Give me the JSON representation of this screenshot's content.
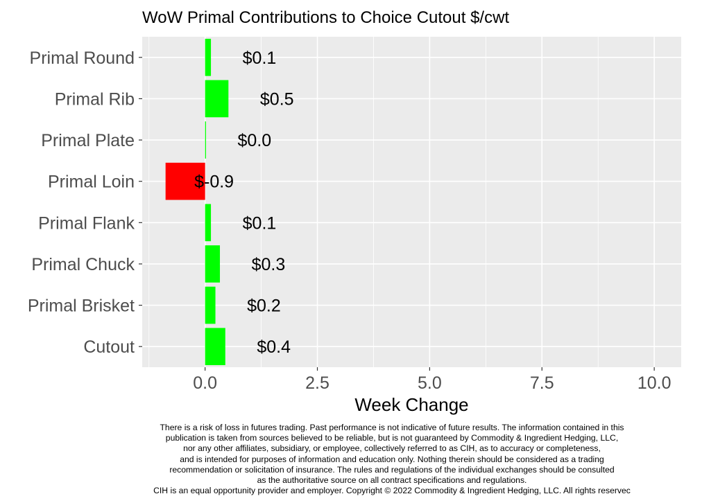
{
  "chart_data": {
    "type": "bar",
    "orientation": "horizontal",
    "title": "WoW Primal Contributions to Choice Cutout $/cwt",
    "xlabel": "Week Change",
    "ylabel": "",
    "categories": [
      "Primal Round",
      "Primal Rib",
      "Primal Plate",
      "Primal Loin",
      "Primal Flank",
      "Primal Chuck",
      "Primal Brisket",
      "Cutout"
    ],
    "values": [
      0.13,
      0.52,
      0.02,
      -0.88,
      0.13,
      0.33,
      0.23,
      0.45
    ],
    "data_labels": [
      "$0.1",
      "$0.5",
      "$0.0",
      "$-0.9",
      "$0.1",
      "$0.3",
      "$0.2",
      "$0.4"
    ],
    "xlim": [
      -1.4,
      10.6
    ],
    "x_ticks": [
      0.0,
      2.5,
      5.0,
      7.5,
      10.0
    ],
    "x_tick_labels": [
      "0.0",
      "2.5",
      "5.0",
      "7.5",
      "10.0"
    ],
    "grid": true,
    "colors": {
      "positive": "#00ff00",
      "negative": "#ff0000",
      "panel": "#ebebeb",
      "gridline": "#ffffff"
    }
  },
  "disclaimer": [
    "There is a risk of loss in futures trading. Past performance is not indicative of future results. The information contained in this",
    "publication is taken from sources believed to be reliable, but is not guaranteed by Commodity & Ingredient Hedging, LLC,",
    "nor any other affiliates, subsidiary, or employee, collectively referred to as CIH, as to accuracy or completeness,",
    "and is intended for purposes of information and education only. Nothing therein should be considered as a trading",
    "recommendation or solicitation of insurance. The rules and regulations of the individual exchanges should be consulted",
    "as the authoritative source on all contract specifications and regulations.",
    "CIH is an equal opportunity provider and employer. Copyright © 2022 Commodity & Ingredient Hedging, LLC. All rights reservec"
  ]
}
